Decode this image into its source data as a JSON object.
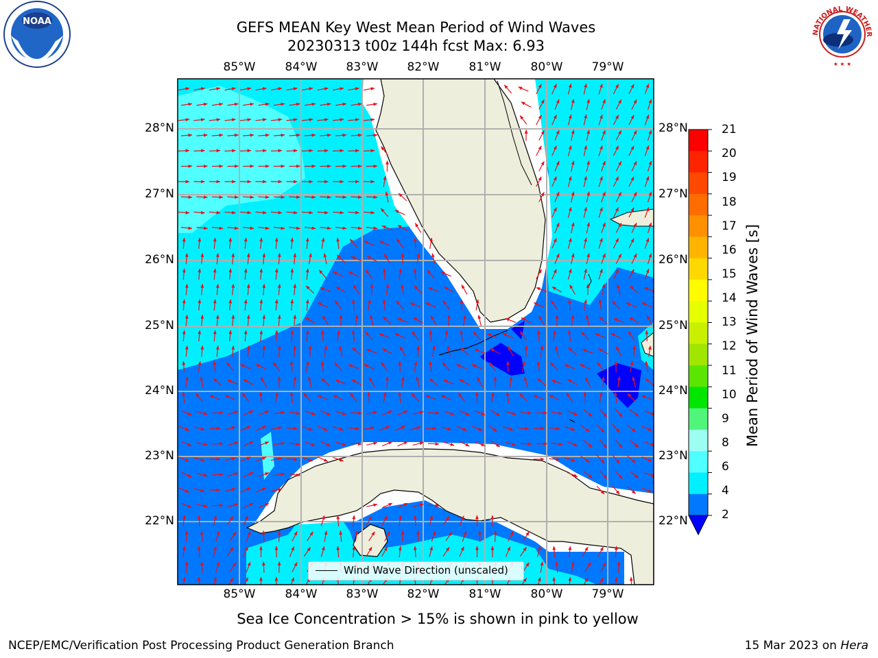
{
  "title": {
    "line1": "GEFS MEAN Key West Mean Period of Wind Waves",
    "line2": "20230313 t00z 144h fcst   Max: 6.93"
  },
  "map": {
    "lon_labels": [
      "85°W",
      "84°W",
      "83°W",
      "82°W",
      "81°W",
      "80°W",
      "79°W"
    ],
    "lat_labels": [
      "28°N",
      "27°N",
      "26°N",
      "25°N",
      "24°N",
      "23°N",
      "22°N"
    ],
    "legend_label": "Wind Wave Direction (unscaled)",
    "arrow_color": "#e8101a",
    "land_color": "#eeeedc"
  },
  "colorbar": {
    "label": "Mean Period of Wind Waves [s]",
    "ticks": [
      "21",
      "20",
      "19",
      "18",
      "17",
      "16",
      "15",
      "14",
      "13",
      "12",
      "11",
      "10",
      "9",
      "8",
      "6",
      "4",
      "2"
    ],
    "colors": [
      "#ff0000",
      "#ff2400",
      "#ff4800",
      "#ff6c00",
      "#ff9000",
      "#ffb400",
      "#ffd800",
      "#fffc00",
      "#e6ff00",
      "#c8f000",
      "#a0e600",
      "#5ae600",
      "#00e600",
      "#50f57a",
      "#9dfff2",
      "#50ffff",
      "#00f0ff",
      "#0078ff"
    ],
    "under_color": "#0000ff"
  },
  "notes": {
    "ice": "Sea Ice Concentration > 15% is shown in pink to yellow",
    "footer_left": "NCEP/EMC/Verification Post Processing Product Generation Branch",
    "footer_date": "15 Mar 2023 on ",
    "footer_host": "Hera"
  },
  "logos": {
    "noaa": "NOAA",
    "nws": "NATIONAL WEATHER SERVICE"
  }
}
